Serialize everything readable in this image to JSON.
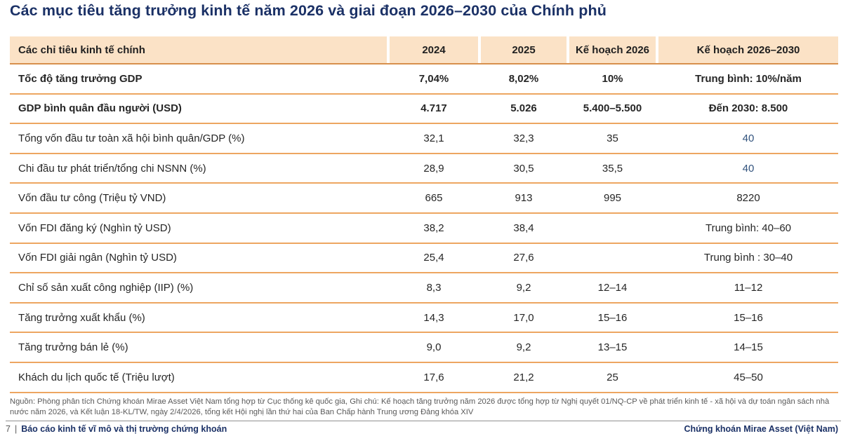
{
  "page": {
    "title": "Các mục tiêu tăng trưởng kinh tế năm 2026 và giai đoạn 2026–2030 của Chính phủ"
  },
  "table": {
    "columns": [
      "Các chỉ tiêu kinh tế chính",
      "2024",
      "2025",
      "Kế hoạch 2026",
      "Kế hoạch 2026–2030"
    ],
    "rows": [
      {
        "label": "Tốc độ tăng trưởng GDP",
        "v2024": "7,04%",
        "v2025": "8,02%",
        "plan2026": "10%",
        "plan2026_2030": "Trung bình: 10%/năm"
      },
      {
        "label": "GDP bình quân đầu người (USD)",
        "v2024": "4.717",
        "v2025": "5.026",
        "plan2026": "5.400–5.500",
        "plan2026_2030": "Đến 2030: 8.500"
      },
      {
        "label": "Tổng vốn đầu tư toàn xã hội bình quân/GDP (%)",
        "v2024": "32,1",
        "v2025": "32,3",
        "plan2026": "35",
        "plan2026_2030": "40"
      },
      {
        "label": "Chi đầu tư phát triển/tổng chi NSNN (%)",
        "v2024": "28,9",
        "v2025": "30,5",
        "plan2026": "35,5",
        "plan2026_2030": "40"
      },
      {
        "label": "Vốn đầu tư công (Triệu tỷ VND)",
        "v2024": "665",
        "v2025": "913",
        "plan2026": "995",
        "plan2026_2030": "8220"
      },
      {
        "label": "Vốn FDI đăng ký (Nghìn tỷ USD)",
        "v2024": "38,2",
        "v2025": "38,4",
        "plan2026": "",
        "plan2026_2030": "Trung bình: 40–60"
      },
      {
        "label": "Vốn FDI  giải ngân (Nghìn tỷ USD)",
        "v2024": "25,4",
        "v2025": "27,6",
        "plan2026": "",
        "plan2026_2030": "Trung bình : 30–40"
      },
      {
        "label": "Chỉ số sản xuất công nghiệp (IIP) (%)",
        "v2024": "8,3",
        "v2025": "9,2",
        "plan2026": "12–14",
        "plan2026_2030": "11–12"
      },
      {
        "label": "Tăng trưởng xuất khẩu (%)",
        "v2024": "14,3",
        "v2025": "17,0",
        "plan2026": "15–16",
        "plan2026_2030": "15–16"
      },
      {
        "label": "Tăng trưởng bán lẻ (%)",
        "v2024": "9,0",
        "v2025": "9,2",
        "plan2026": "13–15",
        "plan2026_2030": "14–15"
      },
      {
        "label": "Khách du lịch quốc tế (Triệu lượt)",
        "v2024": "17,6",
        "v2025": "21,2",
        "plan2026": "25",
        "plan2026_2030": "45–50"
      }
    ]
  },
  "footnote": {
    "text": "Nguồn: Phòng phân tích Chứng khoán Mirae Asset Việt Nam tổng hợp từ Cục thống kê quốc gia, Ghi chú: Kế hoạch tăng trưởng năm 2026 được tổng hợp từ Nghị quyết 01/NQ-CP về phát triển kinh tế - xã hội và dự toán ngân sách nhà nước năm 2026, và Kết luận 18-KL/TW, ngày 2/4/2026, tổng kết Hội nghị lần thứ hai của Ban Chấp hành Trung ương Đảng khóa XIV"
  },
  "footer": {
    "page_number": "7",
    "separator": "|",
    "report_title": "Báo cáo kinh tế vĩ mô và thị trường chứng khoán",
    "company": "Chứng khoán Mirae Asset (Việt Nam)"
  },
  "colors": {
    "title_navy": "#1b3166",
    "header_bg": "#fbe2c6",
    "row_border": "#eda661",
    "header_border": "#d8904d",
    "highlight_blue": "#33547e",
    "body_text": "#262626",
    "muted_text": "#595959"
  }
}
